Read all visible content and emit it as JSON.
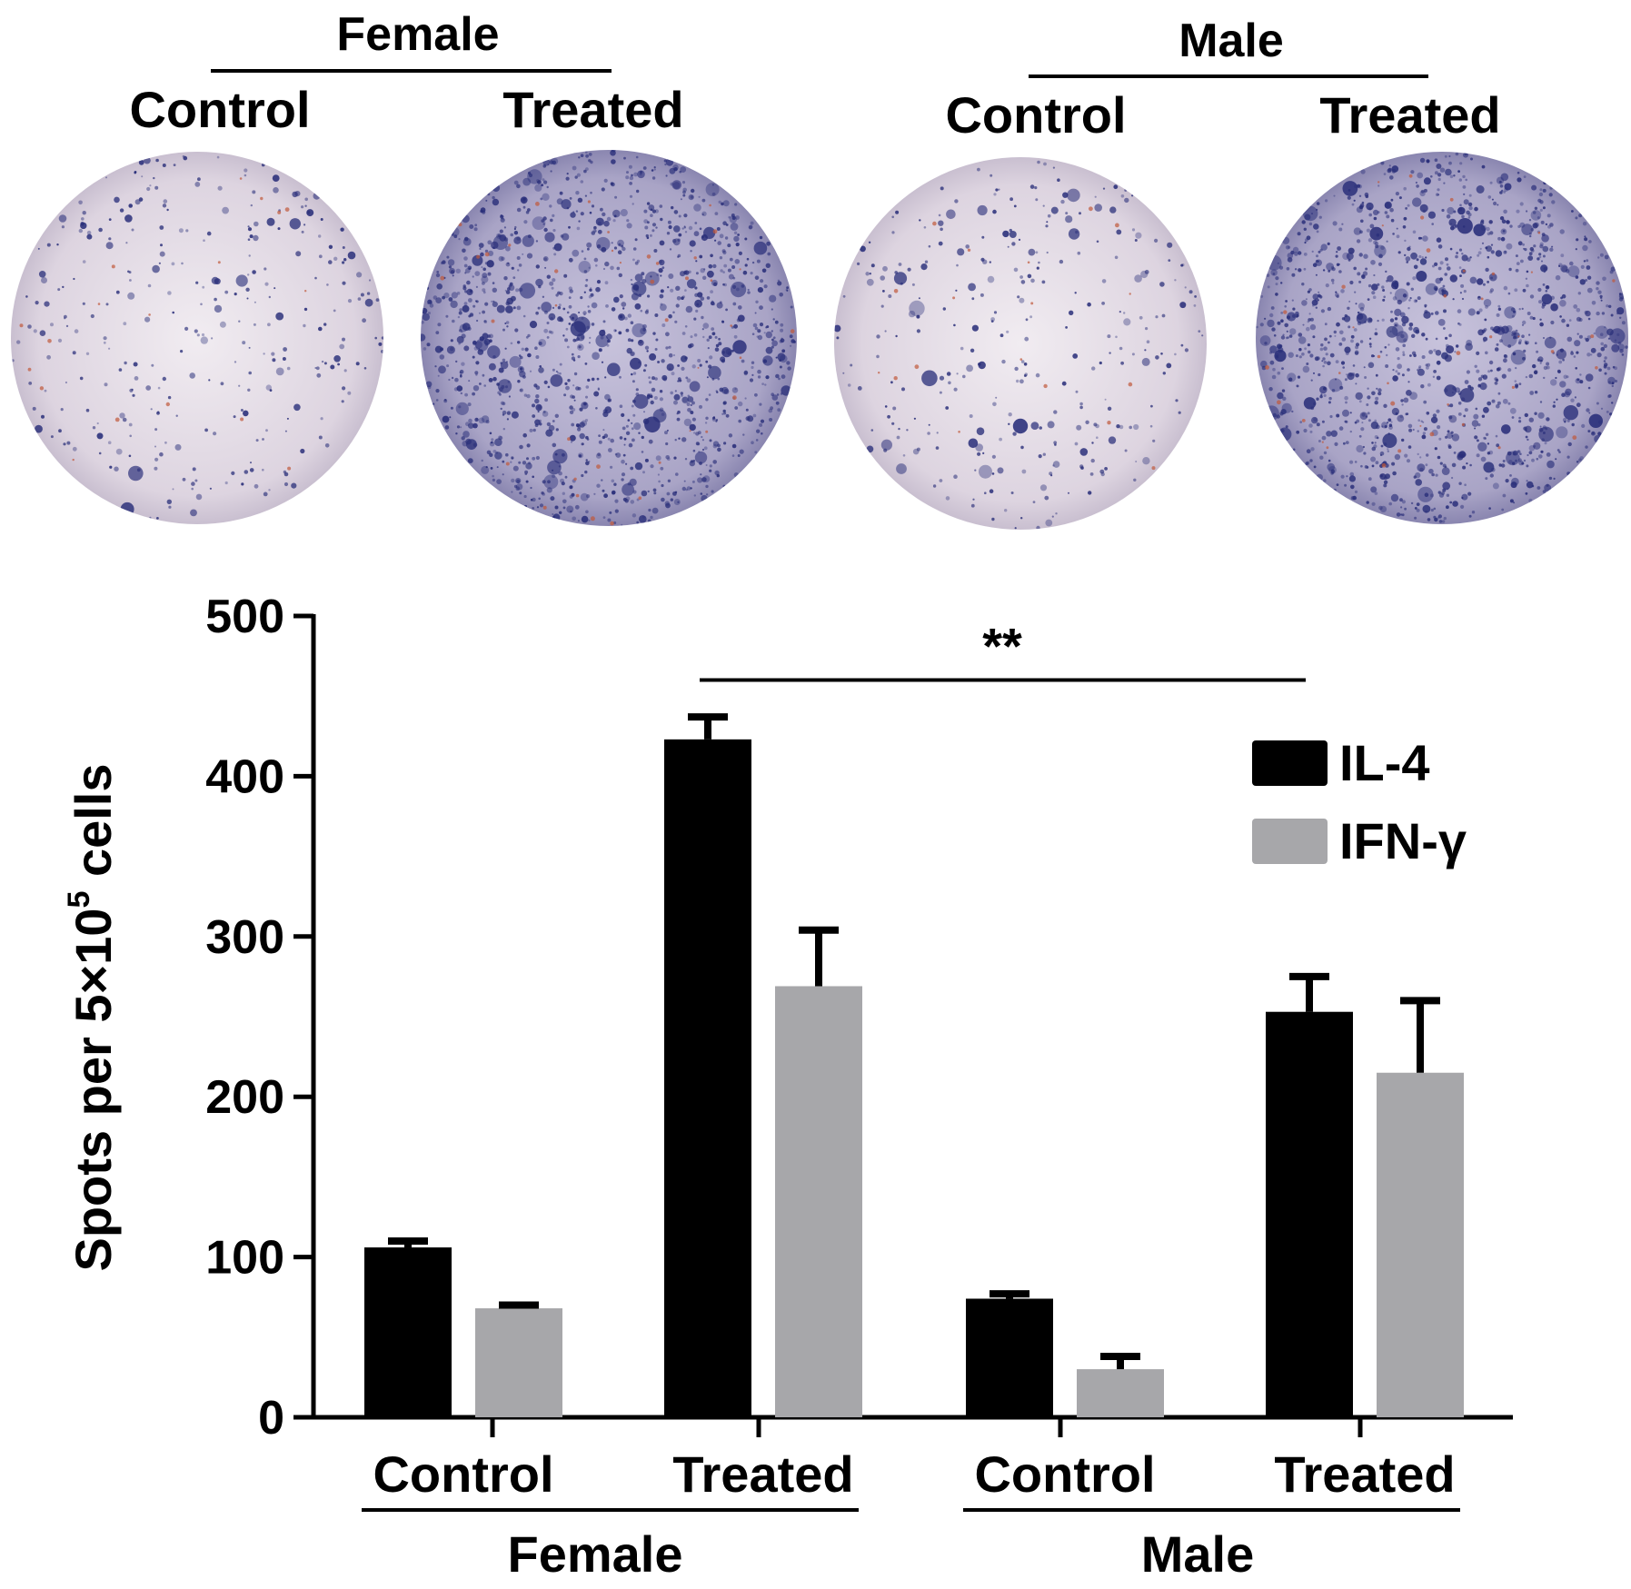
{
  "panel_top": {
    "groups": [
      {
        "label": "Female",
        "wells": [
          {
            "label": "Control",
            "density": "sparse"
          },
          {
            "label": "Treated",
            "density": "dense"
          }
        ]
      },
      {
        "label": "Male",
        "wells": [
          {
            "label": "Control",
            "density": "sparse"
          },
          {
            "label": "Treated",
            "density": "dense"
          }
        ]
      }
    ],
    "colors": {
      "well_bg": "#e4dbe6",
      "spot": "#2a2f7a",
      "speck": "#c0583a"
    }
  },
  "chart_data": {
    "type": "bar",
    "title": "",
    "ylabel": "Spots per 5×10",
    "ylabel_sup": "5",
    "ylabel_tail": " cells",
    "ylim": [
      0,
      500
    ],
    "yticks": [
      "0",
      "100",
      "200",
      "300",
      "400",
      "500"
    ],
    "categories": [
      "Control",
      "Treated",
      "Control",
      "Treated"
    ],
    "groups": [
      {
        "label": "Female",
        "categories": [
          0,
          1
        ]
      },
      {
        "label": "Male",
        "categories": [
          2,
          3
        ]
      }
    ],
    "series": [
      {
        "name": "IL-4",
        "color": "#000000",
        "values": [
          106,
          423,
          74,
          253
        ],
        "errors": [
          4,
          14,
          3,
          22
        ]
      },
      {
        "name": "IFN-γ",
        "color": "#a7a7aa",
        "values": [
          68,
          269,
          30,
          215
        ],
        "errors": [
          2,
          35,
          8,
          45
        ]
      }
    ],
    "significance": {
      "label": "**",
      "from_category": 1,
      "to_category": 3,
      "y": 460
    },
    "grid": false,
    "legend": "top-right"
  }
}
